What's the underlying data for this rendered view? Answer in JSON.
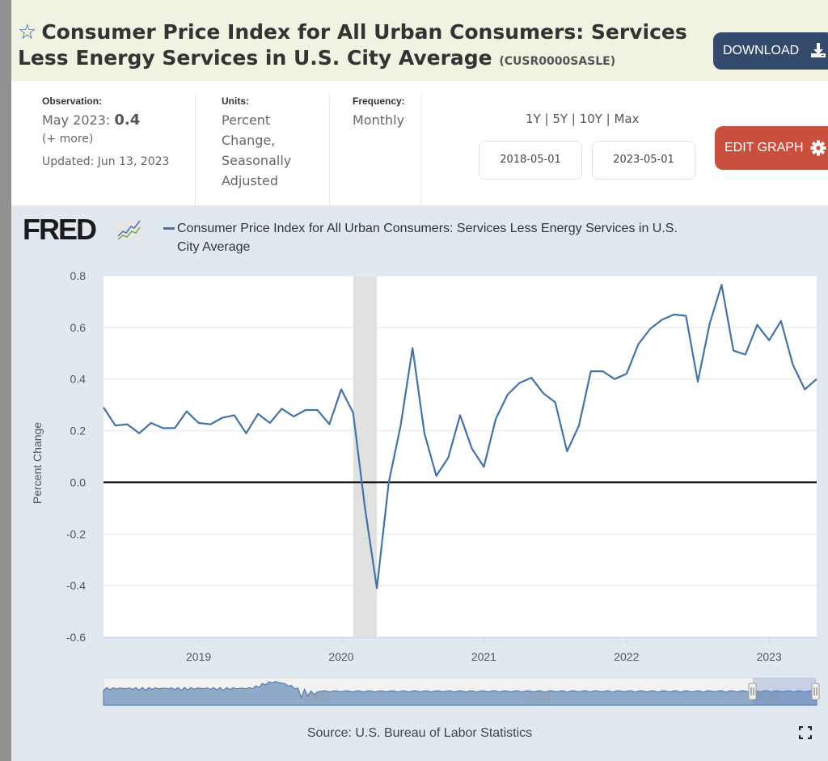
{
  "header": {
    "title": "Consumer Price Index for All Urban Consumers: Services Less Energy Services in U.S. City Average",
    "series_id": "(CUSR0000SASLE)",
    "star_icon": "star-outline-icon",
    "download_label": "DOWNLOAD",
    "download_icon": "download-icon"
  },
  "meta": {
    "observation_label": "Observation:",
    "observation_period": "May 2023:",
    "observation_value": "0.4",
    "more_link": "(+ more)",
    "updated": "Updated: Jun 13, 2023",
    "units_label": "Units:",
    "units_lines": [
      "Percent",
      "Change,",
      "Seasonally",
      "Adjusted"
    ],
    "frequency_label": "Frequency:",
    "frequency_value": "Monthly",
    "ranges": [
      "1Y",
      "5Y",
      "10Y",
      "Max"
    ],
    "range_separator": " | ",
    "start_date": "2018-05-01",
    "end_date": "2023-05-01",
    "edit_graph_label": "EDIT GRAPH",
    "edit_icon": "gear-icon"
  },
  "graph": {
    "logo_text": "FRED",
    "legend_text": "Consumer Price Index for All Urban Consumers: Services Less Energy Services in U.S. City Average",
    "series_color": "#4572a7",
    "recession_color": "#e1e1e1",
    "source": "Source: U.S. Bureau of Labor Statistics",
    "navigator_labels": [
      "1980",
      "2000",
      "2020"
    ]
  },
  "chart_data": {
    "type": "line",
    "title": "Consumer Price Index for All Urban Consumers: Services Less Energy Services in U.S. City Average",
    "xlabel": "",
    "ylabel": "Percent Change",
    "ylim": [
      -0.6,
      0.8
    ],
    "yticks": [
      0.8,
      0.6,
      0.4,
      0.2,
      0.0,
      -0.2,
      -0.4,
      -0.6
    ],
    "ytick_labels": [
      "0.8",
      "0.6",
      "0.4",
      "0.2",
      "0.0",
      "-0.2",
      "-0.4",
      "-0.6"
    ],
    "xlim": [
      "2018-05",
      "2023-05"
    ],
    "xticks": [
      "2019-01",
      "2020-01",
      "2021-01",
      "2022-01",
      "2023-01"
    ],
    "xtick_labels": [
      "2019",
      "2020",
      "2021",
      "2022",
      "2023"
    ],
    "grid": true,
    "zero_line": true,
    "legend": "top-left",
    "recession_shading": [
      [
        "2020-02",
        "2020-04"
      ]
    ],
    "series": [
      {
        "name": "Consumer Price Index for All Urban Consumers: Services Less Energy Services in U.S. City Average",
        "x": [
          "2018-05",
          "2018-06",
          "2018-07",
          "2018-08",
          "2018-09",
          "2018-10",
          "2018-11",
          "2018-12",
          "2019-01",
          "2019-02",
          "2019-03",
          "2019-04",
          "2019-05",
          "2019-06",
          "2019-07",
          "2019-08",
          "2019-09",
          "2019-10",
          "2019-11",
          "2019-12",
          "2020-01",
          "2020-02",
          "2020-03",
          "2020-04",
          "2020-05",
          "2020-06",
          "2020-07",
          "2020-08",
          "2020-09",
          "2020-10",
          "2020-11",
          "2020-12",
          "2021-01",
          "2021-02",
          "2021-03",
          "2021-04",
          "2021-05",
          "2021-06",
          "2021-07",
          "2021-08",
          "2021-09",
          "2021-10",
          "2021-11",
          "2021-12",
          "2022-01",
          "2022-02",
          "2022-03",
          "2022-04",
          "2022-05",
          "2022-06",
          "2022-07",
          "2022-08",
          "2022-09",
          "2022-10",
          "2022-11",
          "2022-12",
          "2023-01",
          "2023-02",
          "2023-03",
          "2023-04",
          "2023-05"
        ],
        "values": [
          0.29,
          0.22,
          0.225,
          0.19,
          0.23,
          0.21,
          0.21,
          0.275,
          0.23,
          0.225,
          0.25,
          0.26,
          0.19,
          0.265,
          0.23,
          0.285,
          0.255,
          0.28,
          0.28,
          0.225,
          0.36,
          0.27,
          -0.1,
          -0.41,
          0.0,
          0.22,
          0.52,
          0.19,
          0.025,
          0.095,
          0.26,
          0.13,
          0.06,
          0.245,
          0.34,
          0.385,
          0.405,
          0.345,
          0.31,
          0.12,
          0.22,
          0.43,
          0.43,
          0.4,
          0.42,
          0.535,
          0.595,
          0.63,
          0.65,
          0.645,
          0.39,
          0.615,
          0.765,
          0.51,
          0.495,
          0.61,
          0.55,
          0.625,
          0.455,
          0.36,
          0.4
        ]
      }
    ]
  }
}
